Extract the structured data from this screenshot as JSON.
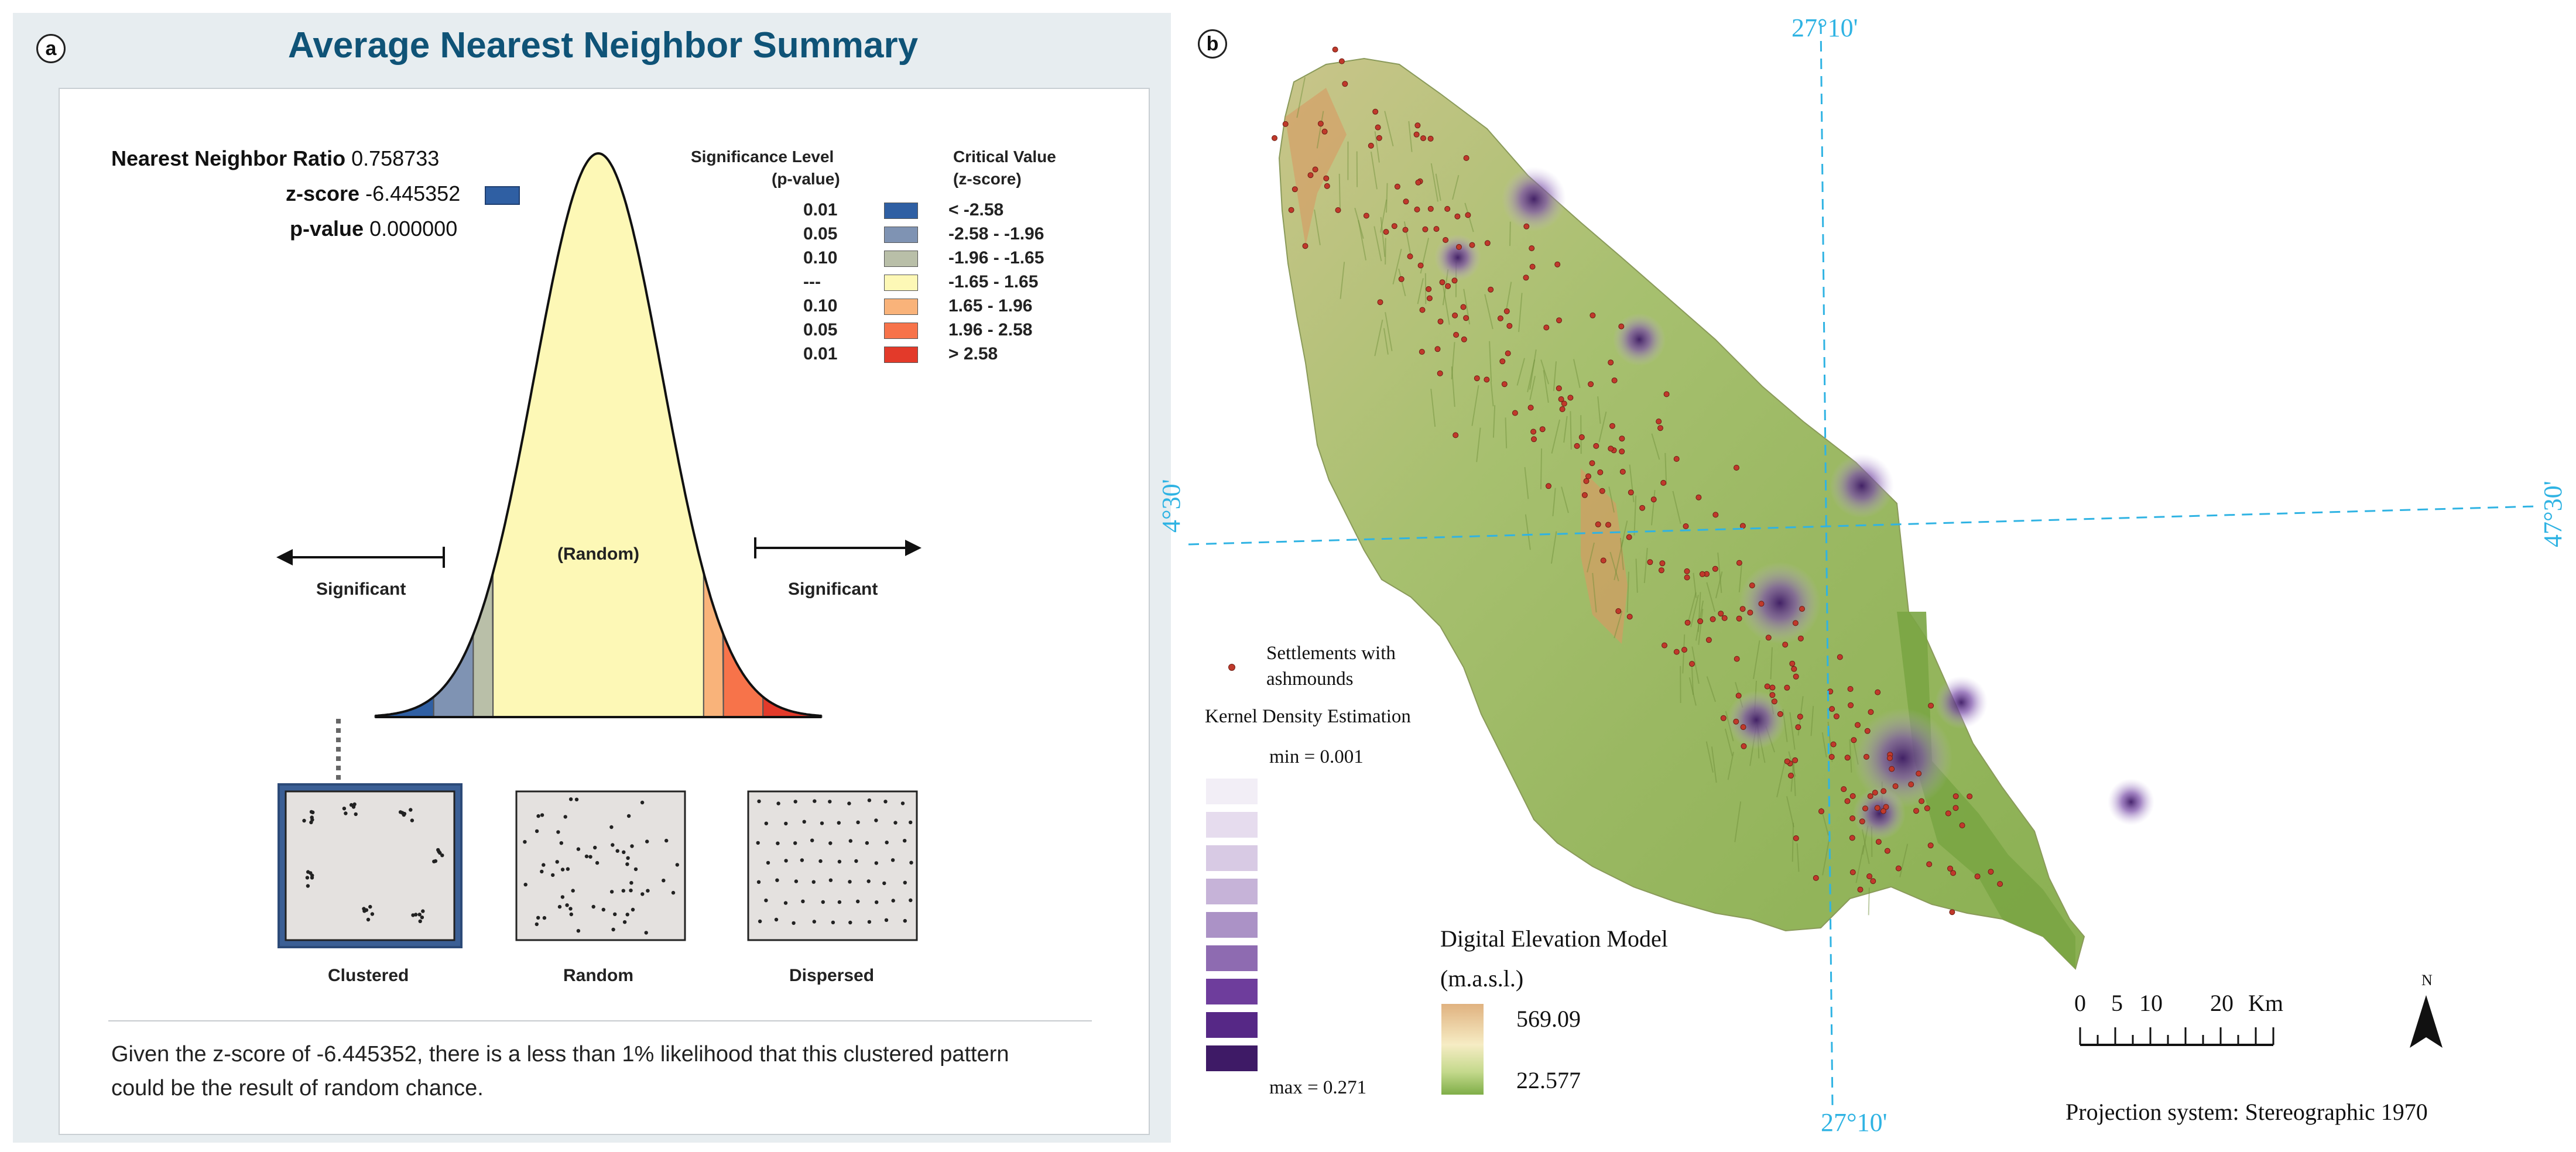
{
  "panel_a": {
    "badge": "a",
    "title": "Average Nearest Neighbor Summary",
    "stats": [
      {
        "label": "Nearest Neighbor Ratio",
        "value": "0.758733"
      },
      {
        "label": "z-score",
        "value": "-6.445352"
      },
      {
        "label": "p-value",
        "value": "0.000000"
      }
    ],
    "table": {
      "header_sig": [
        "Significance Level",
        "(p-value)"
      ],
      "header_crit": [
        "Critical Value",
        "(z-score)"
      ],
      "rows": [
        {
          "p": "0.01",
          "z": "< -2.58",
          "color": "#2f5fa3"
        },
        {
          "p": "0.05",
          "z": "-2.58 - -1.96",
          "color": "#7f93b3"
        },
        {
          "p": "0.10",
          "z": "-1.96 - -1.65",
          "color": "#b9bfa8"
        },
        {
          "p": "---",
          "z": "-1.65 - 1.65",
          "color": "#fdf8b6"
        },
        {
          "p": "0.10",
          "z": "1.65 - 1.96",
          "color": "#f9b37a"
        },
        {
          "p": "0.05",
          "z": "1.96 - 2.58",
          "color": "#f7734a"
        },
        {
          "p": "0.01",
          "z": "> 2.58",
          "color": "#e33a2a"
        }
      ]
    },
    "curve_labels": {
      "left": "Significant",
      "center": "(Random)",
      "right": "Significant"
    },
    "patterns": [
      "Clustered",
      "Random",
      "Dispersed"
    ],
    "conclusion": [
      "Given the z-score of -6.445352, there is a less than 1% likelihood that this clustered pattern",
      "could be the result of random chance."
    ]
  },
  "panel_b": {
    "badge": "b",
    "grid_labels": {
      "top": "27°10'",
      "bottom": "27°10'",
      "left": "4°30'",
      "right": "47°30'"
    },
    "legend": {
      "settlements": [
        "Settlements with",
        "ashmounds"
      ],
      "kde_title": "Kernel Density Estimation",
      "kde_min": "min = 0.001",
      "kde_max": "max = 0.271",
      "kde_colors": [
        "#f2eef6",
        "#e6dcee",
        "#d8cae4",
        "#c6b3d8",
        "#ab92c6",
        "#8e6bb1",
        "#6e3d9c",
        "#562886",
        "#3e1a66"
      ]
    },
    "dem": {
      "title": "Digital Elevation Model",
      "unit": "(m.a.s.l.)",
      "max": "569.09",
      "min": "22.577"
    },
    "scale": {
      "ticks": [
        "0",
        "5",
        "10",
        "20"
      ],
      "unit": "Km"
    },
    "north": "N",
    "projection": "Projection system: Stereographic 1970",
    "colors": {
      "map_low": "#8ab052",
      "map_mid": "#b5c98a",
      "map_high": "#d89a62",
      "grid": "#2fb3e3",
      "point": "#c0392b"
    }
  }
}
